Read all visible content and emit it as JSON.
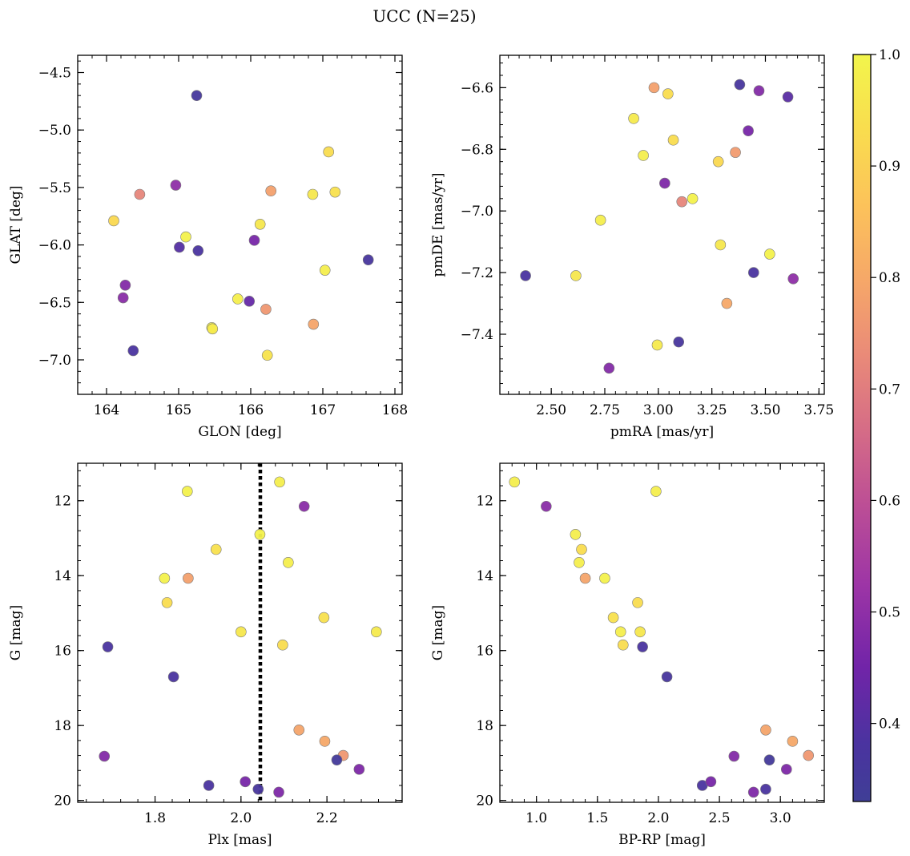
{
  "figure": {
    "title": "UCC (N=25)"
  },
  "colorbar": {
    "colormap": "plasma",
    "range": [
      0.33,
      1.0
    ],
    "ticks": [
      0.4,
      0.5,
      0.6,
      0.7,
      0.8,
      0.9,
      1.0
    ],
    "tick_labels": [
      "0.4",
      "0.5",
      "0.6",
      "0.7",
      "0.8",
      "0.9",
      "1.0"
    ]
  },
  "chart_data": [
    {
      "type": "scatter",
      "xlabel": "GLON [deg]",
      "ylabel": "GLAT [deg]",
      "xlim": [
        163.6,
        168.1
      ],
      "ylim": [
        -7.3,
        -4.35
      ],
      "xticks": [
        164,
        165,
        166,
        167,
        168
      ],
      "xtick_labels": [
        "164",
        "165",
        "166",
        "167",
        "168"
      ],
      "yticks": [
        -4.5,
        -5.0,
        -5.5,
        -6.0,
        -6.5,
        -7.0
      ],
      "ytick_labels": [
        "−4.5",
        "−5.0",
        "−5.5",
        "−6.0",
        "−6.5",
        "−7.0"
      ],
      "x": [
        165.25,
        167.08,
        164.46,
        164.96,
        166.28,
        166.86,
        167.17,
        164.1,
        166.13,
        165.1,
        166.05,
        165.01,
        165.27,
        167.63,
        167.03,
        164.26,
        164.23,
        165.82,
        165.98,
        166.21,
        165.46,
        166.87,
        164.37,
        166.23,
        165.47
      ],
      "y": [
        -4.7,
        -5.19,
        -5.56,
        -5.48,
        -5.53,
        -5.56,
        -5.54,
        -5.79,
        -5.82,
        -5.93,
        -5.96,
        -6.02,
        -6.05,
        -6.13,
        -6.22,
        -6.35,
        -6.46,
        -6.47,
        -6.49,
        -6.56,
        -6.72,
        -6.69,
        -6.92,
        -6.96,
        -6.73
      ],
      "values": [
        0.36,
        0.93,
        0.72,
        0.5,
        0.78,
        0.96,
        0.94,
        0.92,
        0.96,
        0.99,
        0.46,
        0.4,
        0.38,
        0.37,
        0.98,
        0.48,
        0.49,
        0.98,
        0.43,
        0.76,
        0.99,
        0.79,
        0.38,
        0.95,
        0.97
      ]
    },
    {
      "type": "scatter",
      "xlabel": "pmRA [mas/yr]",
      "ylabel": "pmDE [mas/yr]",
      "xlim": [
        2.26,
        3.775
      ],
      "ylim": [
        -7.595,
        -6.495
      ],
      "xticks": [
        2.5,
        2.75,
        3.0,
        3.25,
        3.5,
        3.75
      ],
      "xtick_labels": [
        "2.50",
        "2.75",
        "3.00",
        "3.25",
        "3.50",
        "3.75"
      ],
      "yticks": [
        -6.6,
        -6.8,
        -7.0,
        -7.2,
        -7.4
      ],
      "ytick_labels": [
        "−6.6",
        "−6.8",
        "−7.0",
        "−7.2",
        "−7.4"
      ],
      "x": [
        2.38,
        2.615,
        2.73,
        2.885,
        2.93,
        2.98,
        3.03,
        3.045,
        3.07,
        3.11,
        3.16,
        3.28,
        3.29,
        3.32,
        3.36,
        3.38,
        3.42,
        3.445,
        3.47,
        3.52,
        3.605,
        3.63,
        2.77,
        2.995,
        3.095
      ],
      "y": [
        -7.21,
        -7.21,
        -7.03,
        -6.7,
        -6.82,
        -6.6,
        -6.91,
        -6.62,
        -6.77,
        -6.97,
        -6.96,
        -6.84,
        -7.11,
        -7.3,
        -6.81,
        -6.59,
        -6.74,
        -7.2,
        -6.61,
        -7.14,
        -6.63,
        -7.22,
        -7.51,
        -7.435,
        -7.425
      ],
      "values": [
        0.38,
        0.96,
        0.98,
        0.97,
        0.98,
        0.78,
        0.47,
        0.93,
        0.93,
        0.72,
        0.99,
        0.92,
        0.96,
        0.8,
        0.77,
        0.37,
        0.46,
        0.38,
        0.48,
        0.99,
        0.41,
        0.5,
        0.48,
        0.97,
        0.37
      ]
    },
    {
      "type": "scatter",
      "xlabel": "Plx [mas]",
      "ylabel": "G [mag]",
      "xlim": [
        1.62,
        2.375
      ],
      "ylim": [
        20.05,
        11.0
      ],
      "y_inverted": true,
      "vline": 2.045,
      "vline_style": "black dotted",
      "xticks": [
        1.8,
        2.0,
        2.2
      ],
      "xtick_labels": [
        "1.8",
        "2.0",
        "2.2"
      ],
      "yticks": [
        12,
        14,
        16,
        18,
        20
      ],
      "ytick_labels": [
        "12",
        "14",
        "16",
        "18",
        "20"
      ],
      "x": [
        2.09,
        1.875,
        2.147,
        2.044,
        1.942,
        2.11,
        1.822,
        1.877,
        1.828,
        2.193,
        2.0,
        2.315,
        2.097,
        1.69,
        1.843,
        2.135,
        2.195,
        2.238,
        2.223,
        2.275,
        1.682,
        1.925,
        2.01,
        2.04,
        2.088
      ],
      "y": [
        11.5,
        11.75,
        12.15,
        12.9,
        13.3,
        13.65,
        14.07,
        14.07,
        14.72,
        15.12,
        15.5,
        15.5,
        15.85,
        15.9,
        16.7,
        18.12,
        18.42,
        18.8,
        18.92,
        19.17,
        18.82,
        19.6,
        19.5,
        19.7,
        19.78
      ],
      "values": [
        0.98,
        0.99,
        0.49,
        0.99,
        0.94,
        0.98,
        0.99,
        0.78,
        0.93,
        0.94,
        0.96,
        0.97,
        0.93,
        0.38,
        0.38,
        0.79,
        0.8,
        0.76,
        0.35,
        0.47,
        0.48,
        0.38,
        0.46,
        0.37,
        0.47
      ]
    },
    {
      "type": "scatter",
      "xlabel": "BP-RP [mag]",
      "ylabel": "G [mag]",
      "xlim": [
        0.7,
        3.36
      ],
      "ylim": [
        20.05,
        11.0
      ],
      "y_inverted": true,
      "xticks": [
        1.0,
        1.5,
        2.0,
        2.5,
        3.0
      ],
      "xtick_labels": [
        "1.0",
        "1.5",
        "2.0",
        "2.5",
        "3.0"
      ],
      "yticks": [
        12,
        14,
        16,
        18,
        20
      ],
      "ytick_labels": [
        "12",
        "14",
        "16",
        "18",
        "20"
      ],
      "x": [
        0.82,
        1.08,
        1.32,
        1.37,
        1.35,
        1.4,
        1.56,
        1.63,
        1.85,
        1.83,
        1.69,
        1.71,
        1.87,
        2.07,
        1.98,
        2.88,
        3.1,
        3.23,
        2.62,
        2.91,
        3.05,
        2.36,
        2.43,
        2.78,
        2.88
      ],
      "y": [
        11.5,
        12.15,
        12.9,
        13.3,
        13.65,
        14.07,
        14.07,
        15.12,
        15.5,
        14.72,
        15.5,
        15.85,
        15.9,
        16.7,
        11.75,
        18.12,
        18.42,
        18.8,
        18.82,
        18.92,
        19.17,
        19.6,
        19.5,
        19.78,
        19.7
      ],
      "values": [
        0.98,
        0.49,
        0.98,
        0.93,
        0.98,
        0.79,
        0.99,
        0.94,
        0.96,
        0.93,
        0.98,
        0.93,
        0.38,
        0.37,
        0.98,
        0.79,
        0.8,
        0.76,
        0.48,
        0.35,
        0.47,
        0.38,
        0.46,
        0.47,
        0.38
      ]
    }
  ]
}
